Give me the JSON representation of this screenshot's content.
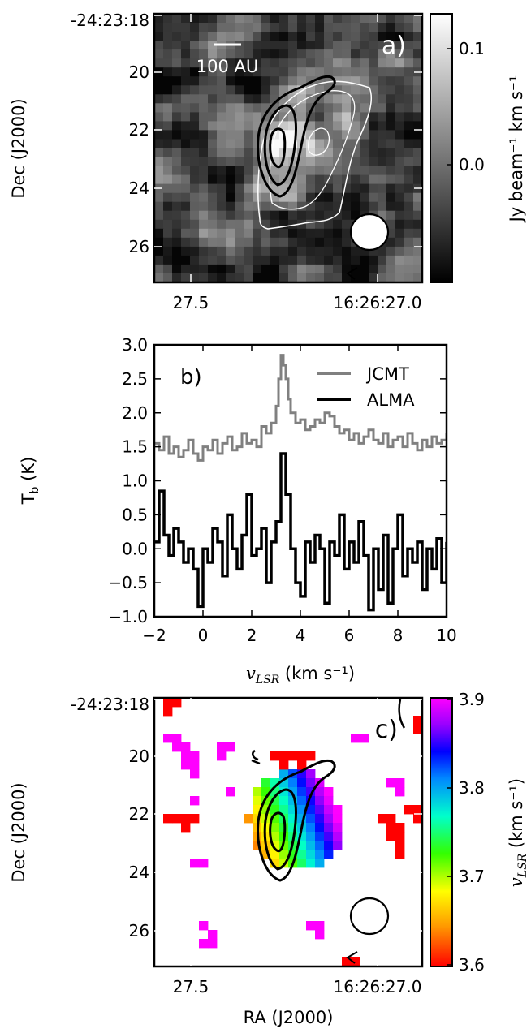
{
  "panels": {
    "a": {
      "tag": "a)",
      "scalebar_label": "100 AU",
      "ylabel": "Dec (J2000)",
      "colorbar_label": "Jy beam⁻¹ km s⁻¹",
      "colorbar_ticks": [
        "0.1",
        "0.0"
      ]
    },
    "b": {
      "tag": "b)",
      "ylabel": "T",
      "ylabel_sub": "b",
      "ylabel_unit": " (K)",
      "xlabel_var": "v",
      "xlabel_sub": "LSR",
      "xlabel_unit": " (km s⁻¹)",
      "legend": [
        "JCMT",
        "ALMA"
      ]
    },
    "c": {
      "tag": "c)",
      "ylabel": "Dec (J2000)",
      "xlabel": "RA (J2000)",
      "colorbar_var": "v",
      "colorbar_sub": "LSR",
      "colorbar_unit": " (km s⁻¹)",
      "colorbar_ticks": [
        "3.9",
        "3.8",
        "3.7",
        "3.6"
      ]
    }
  },
  "chart_data": [
    {
      "type": "heatmap",
      "panel": "a",
      "title": "",
      "xlabel": "",
      "ylabel": "Dec (J2000)",
      "xticks": [
        "27.5",
        "16:26:27.0"
      ],
      "yticks": [
        "-24:23:18",
        "20",
        "22",
        "24",
        "26"
      ],
      "colorbar_range": [
        -0.04,
        0.13
      ],
      "colormap": "gray"
    },
    {
      "type": "line",
      "panel": "b",
      "xlabel": "v_LSR (km s^-1)",
      "ylabel": "T_b (K)",
      "xlim": [
        -2,
        10
      ],
      "ylim": [
        -1.0,
        3.0
      ],
      "xticks": [
        "−2",
        "0",
        "2",
        "4",
        "6",
        "8",
        "10"
      ],
      "yticks": [
        "3.0",
        "2.5",
        "2.0",
        "1.5",
        "1.0",
        "0.5",
        "0.0",
        "−0.5",
        "−1.0"
      ],
      "legend_position": "top-right",
      "series": [
        {
          "name": "JCMT",
          "color": "#808080",
          "x": [
            -2.0,
            -1.8,
            -1.6,
            -1.4,
            -1.2,
            -1.0,
            -0.8,
            -0.6,
            -0.4,
            -0.2,
            0.0,
            0.2,
            0.4,
            0.6,
            0.8,
            1.0,
            1.2,
            1.4,
            1.6,
            1.8,
            2.0,
            2.2,
            2.4,
            2.6,
            2.8,
            3.0,
            3.1,
            3.2,
            3.3,
            3.4,
            3.5,
            3.6,
            3.8,
            4.0,
            4.2,
            4.4,
            4.6,
            4.8,
            5.0,
            5.2,
            5.4,
            5.6,
            5.8,
            6.0,
            6.2,
            6.4,
            6.6,
            6.8,
            7.0,
            7.2,
            7.4,
            7.6,
            7.8,
            8.0,
            8.2,
            8.4,
            8.6,
            8.8,
            9.0,
            9.2,
            9.4,
            9.6,
            9.8,
            10.0
          ],
          "y": [
            1.55,
            1.45,
            1.65,
            1.4,
            1.5,
            1.35,
            1.45,
            1.6,
            1.4,
            1.3,
            1.5,
            1.45,
            1.6,
            1.4,
            1.55,
            1.65,
            1.45,
            1.5,
            1.7,
            1.55,
            1.6,
            1.5,
            1.8,
            1.7,
            1.85,
            2.1,
            2.5,
            2.85,
            2.7,
            2.5,
            2.2,
            2.0,
            1.85,
            1.9,
            1.75,
            1.8,
            1.9,
            1.85,
            2.0,
            1.95,
            1.8,
            1.7,
            1.75,
            1.6,
            1.7,
            1.55,
            1.65,
            1.75,
            1.6,
            1.55,
            1.7,
            1.5,
            1.6,
            1.65,
            1.5,
            1.7,
            1.55,
            1.45,
            1.6,
            1.5,
            1.65,
            1.55,
            1.6,
            1.7
          ]
        },
        {
          "name": "ALMA",
          "color": "#000000",
          "x": [
            -2.0,
            -1.8,
            -1.6,
            -1.4,
            -1.2,
            -1.0,
            -0.8,
            -0.6,
            -0.4,
            -0.2,
            0.0,
            0.2,
            0.4,
            0.6,
            0.8,
            1.0,
            1.2,
            1.4,
            1.6,
            1.8,
            2.0,
            2.2,
            2.4,
            2.6,
            2.8,
            3.0,
            3.2,
            3.4,
            3.6,
            3.8,
            4.0,
            4.2,
            4.4,
            4.6,
            4.8,
            5.0,
            5.2,
            5.4,
            5.6,
            5.8,
            6.0,
            6.2,
            6.4,
            6.6,
            6.8,
            7.0,
            7.2,
            7.4,
            7.6,
            7.8,
            8.0,
            8.2,
            8.4,
            8.6,
            8.8,
            9.0,
            9.2,
            9.4,
            9.6,
            9.8,
            10.0
          ],
          "y": [
            0.1,
            0.85,
            0.2,
            -0.1,
            0.3,
            0.1,
            -0.2,
            0.0,
            -0.3,
            -0.85,
            0.0,
            -0.2,
            0.3,
            0.1,
            -0.4,
            0.5,
            0.0,
            -0.3,
            0.2,
            0.8,
            -0.1,
            0.0,
            0.3,
            -0.5,
            0.1,
            0.4,
            1.4,
            0.8,
            0.0,
            -0.5,
            -0.7,
            0.1,
            -0.2,
            0.2,
            0.0,
            -0.8,
            0.1,
            -0.1,
            0.5,
            -0.3,
            0.1,
            -0.2,
            0.4,
            -0.1,
            -0.9,
            0.0,
            -0.6,
            0.2,
            -0.8,
            0.0,
            0.5,
            -0.4,
            0.0,
            -0.2,
            0.1,
            -0.6,
            0.0,
            -0.3,
            0.15,
            -0.5,
            0.1
          ]
        }
      ]
    },
    {
      "type": "heatmap",
      "panel": "c",
      "title": "",
      "xlabel": "RA (J2000)",
      "ylabel": "Dec (J2000)",
      "xticks": [
        "27.5",
        "16:26:27.0"
      ],
      "yticks": [
        "-24:23:18",
        "20",
        "22",
        "24",
        "26"
      ],
      "colorbar_range": [
        3.6,
        3.9
      ],
      "colormap": "gist_rainbow_r"
    }
  ]
}
